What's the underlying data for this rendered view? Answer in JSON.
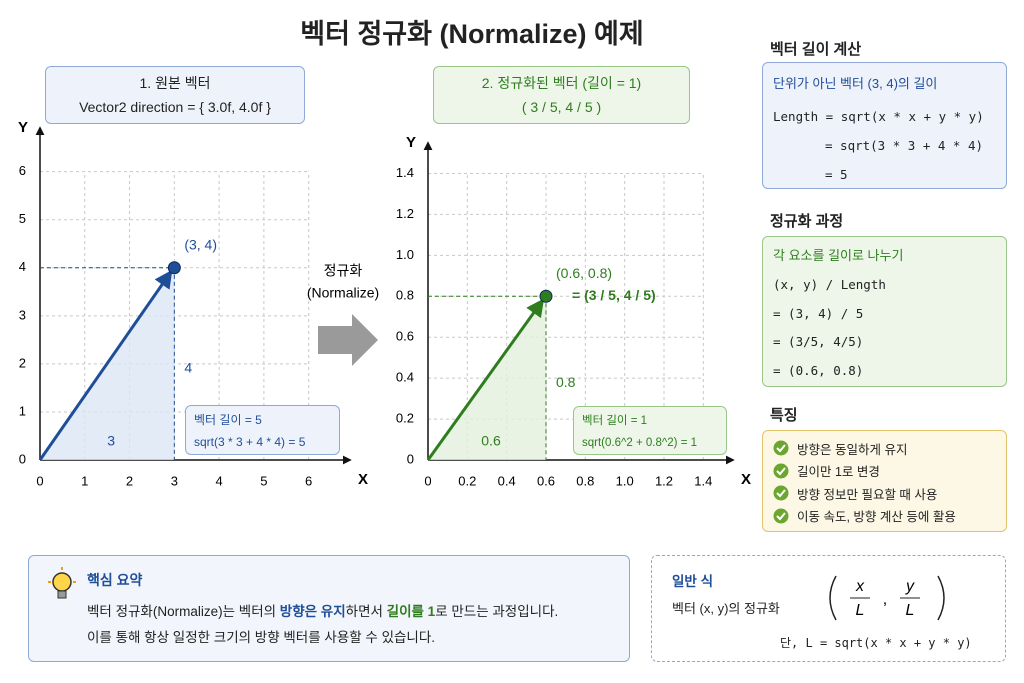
{
  "title": "벡터 정규화 (Normalize) 예제",
  "chart_data": [
    {
      "type": "vector",
      "title": "1. 원본 벡터",
      "subtitle": "Vector2 direction = { 3.0f, 4.0f }",
      "x_label": "X",
      "y_label": "Y",
      "xlim": [
        0,
        6.7
      ],
      "ylim": [
        0,
        6.7
      ],
      "xticks": [
        0,
        1,
        2,
        3,
        4,
        5,
        6
      ],
      "yticks": [
        0,
        1,
        2,
        3,
        4,
        5,
        6
      ],
      "grid": true,
      "color": "#1f4e99",
      "fill_color": "#dbe6f4",
      "x": [
        3
      ],
      "values": [
        4
      ],
      "point_label": "(3, 4)",
      "x_component_label": "3",
      "y_component_label": "4",
      "note": [
        "벡터 길이 = 5",
        "sqrt(3 * 3 + 4 * 4) = 5"
      ]
    },
    {
      "type": "vector",
      "title": "2. 정규화된 벡터 (길이 = 1)",
      "subtitle": "( 3 / 5, 4 / 5 )",
      "x_label": "X",
      "y_label": "Y",
      "xlim": [
        0,
        1.5
      ],
      "ylim": [
        0,
        1.5
      ],
      "xticks": [
        0,
        0.2,
        0.4,
        0.6,
        0.8,
        {
          "value": 1,
          "label": "1.0"
        },
        1.2,
        1.4
      ],
      "yticks": [
        0,
        0.2,
        0.4,
        0.6,
        0.8,
        {
          "value": 1,
          "label": "1.0"
        },
        1.2,
        1.4
      ],
      "grid": true,
      "color": "#2e7d1e",
      "fill_color": "#e3f0dc",
      "x": [
        0.6
      ],
      "values": [
        0.8
      ],
      "point_label": "(0.6, 0.8)",
      "point_equation": "= (3 / 5, 4 / 5)",
      "x_component_label": "0.6",
      "y_component_label": "0.8",
      "note": [
        "벡터 길이 = 1",
        "sqrt(0.6^2 + 0.8^2) = 1"
      ]
    }
  ],
  "transition": [
    "정규화",
    "(Normalize)"
  ],
  "length_calc": {
    "heading": "벡터 길이 계산",
    "caption": "단위가 아닌 벡터 (3, 4)의 길이",
    "lines": [
      "Length = sqrt(x * x + y * y)",
      "= sqrt(3 * 3 + 4 * 4)",
      "= 5"
    ]
  },
  "process": {
    "heading": "정규화 과정",
    "caption": "각 요소를 길이로 나누기",
    "lines": [
      "(x, y) / Length",
      "= (3, 4) / 5",
      "= (3/5, 4/5)",
      "= (0.6, 0.8)"
    ]
  },
  "features": {
    "heading": "특징",
    "items": [
      "방향은 동일하게 유지",
      "길이만 1로 변경",
      "방향 정보만 필요할 때 사용",
      "이동 속도, 방향 계산 등에 활용"
    ]
  },
  "summary": {
    "heading": "핵심 요약",
    "line1": [
      "벡터 정규화(Normalize)는 벡터의 ",
      "방향은 유지",
      "하면서 ",
      "길이를 1",
      "로 만드는 과정입니다."
    ],
    "line2": "이를 통해 항상 일정한 크기의 방향 벡터를 사용할 수 있습니다."
  },
  "formula": {
    "heading": "일반 식",
    "label": "벡터 (x, y)의 정규화",
    "numerators": [
      "x",
      "y"
    ],
    "denominators": [
      "L",
      "L"
    ],
    "separator": ",",
    "condition": "단, L = sqrt(x * x + y * y)"
  }
}
